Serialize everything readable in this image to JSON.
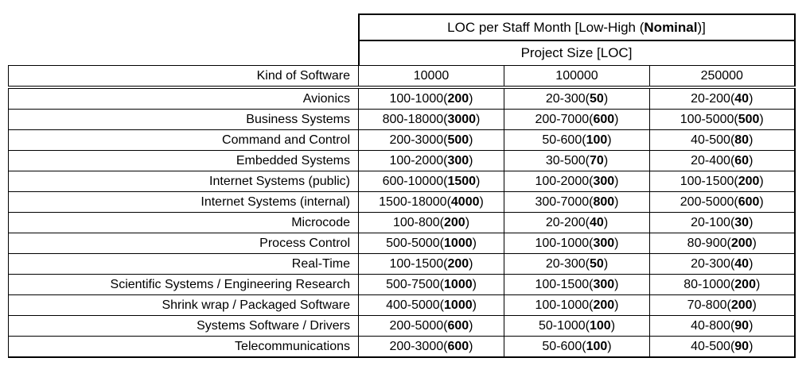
{
  "table": {
    "title": {
      "prefix": "LOC per Staff Month [Low-High (",
      "bold": "Nominal",
      "suffix": ")]"
    },
    "subtitle": "Project Size [LOC]",
    "row_header": "Kind of Software",
    "size_columns": [
      "10000",
      "100000",
      "250000"
    ],
    "rows": [
      {
        "label": "Avionics",
        "cells": [
          {
            "range": "100-1000",
            "nominal": "200"
          },
          {
            "range": "20-300",
            "nominal": "50"
          },
          {
            "range": "20-200",
            "nominal": "40"
          }
        ]
      },
      {
        "label": "Business Systems",
        "cells": [
          {
            "range": "800-18000",
            "nominal": "3000"
          },
          {
            "range": "200-7000",
            "nominal": "600"
          },
          {
            "range": "100-5000",
            "nominal": "500"
          }
        ]
      },
      {
        "label": "Command and Control",
        "cells": [
          {
            "range": "200-3000",
            "nominal": "500"
          },
          {
            "range": "50-600",
            "nominal": "100"
          },
          {
            "range": "40-500",
            "nominal": "80"
          }
        ]
      },
      {
        "label": "Embedded Systems",
        "cells": [
          {
            "range": "100-2000",
            "nominal": "300"
          },
          {
            "range": "30-500",
            "nominal": "70"
          },
          {
            "range": "20-400",
            "nominal": "60"
          }
        ]
      },
      {
        "label": "Internet Systems (public)",
        "cells": [
          {
            "range": "600-10000",
            "nominal": "1500"
          },
          {
            "range": "100-2000",
            "nominal": "300"
          },
          {
            "range": "100-1500",
            "nominal": "200"
          }
        ]
      },
      {
        "label": "Internet Systems (internal)",
        "cells": [
          {
            "range": "1500-18000",
            "nominal": "4000"
          },
          {
            "range": "300-7000",
            "nominal": "800"
          },
          {
            "range": "200-5000",
            "nominal": "600"
          }
        ]
      },
      {
        "label": "Microcode",
        "cells": [
          {
            "range": "100-800",
            "nominal": "200"
          },
          {
            "range": "20-200",
            "nominal": "40"
          },
          {
            "range": "20-100",
            "nominal": "30"
          }
        ]
      },
      {
        "label": "Process Control",
        "cells": [
          {
            "range": "500-5000",
            "nominal": "1000"
          },
          {
            "range": "100-1000",
            "nominal": "300"
          },
          {
            "range": "80-900",
            "nominal": "200"
          }
        ]
      },
      {
        "label": "Real-Time",
        "cells": [
          {
            "range": "100-1500",
            "nominal": "200"
          },
          {
            "range": "20-300",
            "nominal": "50"
          },
          {
            "range": "20-300",
            "nominal": "40"
          }
        ]
      },
      {
        "label": "Scientific Systems / Engineering Research",
        "cells": [
          {
            "range": "500-7500",
            "nominal": "1000"
          },
          {
            "range": "100-1500",
            "nominal": "300"
          },
          {
            "range": "80-1000",
            "nominal": "200"
          }
        ]
      },
      {
        "label": "Shrink wrap / Packaged Software",
        "cells": [
          {
            "range": "400-5000",
            "nominal": "1000"
          },
          {
            "range": "100-1000",
            "nominal": "200"
          },
          {
            "range": "70-800",
            "nominal": "200"
          }
        ]
      },
      {
        "label": "Systems Software / Drivers",
        "cells": [
          {
            "range": "200-5000",
            "nominal": "600"
          },
          {
            "range": "50-1000",
            "nominal": "100"
          },
          {
            "range": "40-800",
            "nominal": "90"
          }
        ]
      },
      {
        "label": "Telecommunications",
        "cells": [
          {
            "range": "200-3000",
            "nominal": "600"
          },
          {
            "range": "50-600",
            "nominal": "100"
          },
          {
            "range": "40-500",
            "nominal": "90"
          }
        ]
      }
    ]
  },
  "colors": {
    "background": "#ffffff",
    "text": "#000000",
    "border": "#000000"
  }
}
